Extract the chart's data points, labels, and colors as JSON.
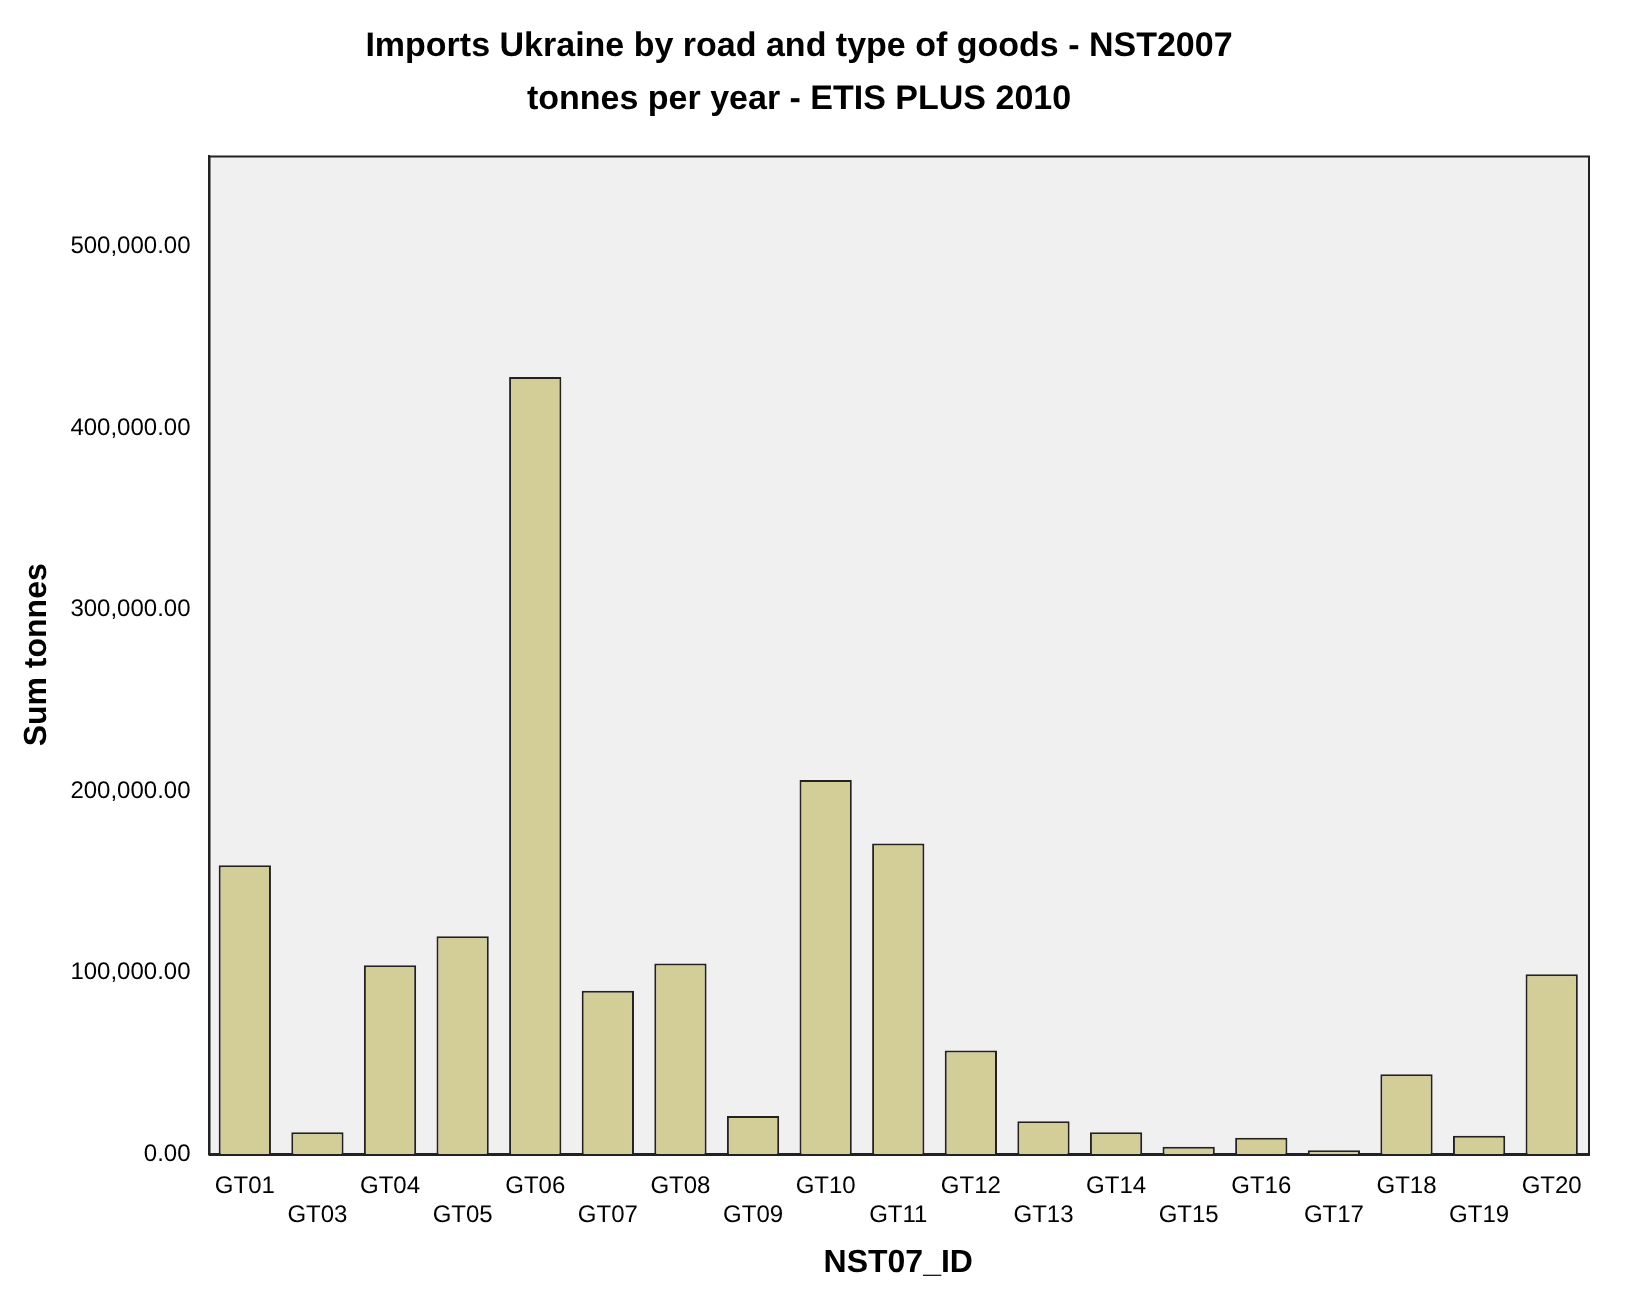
{
  "chart_data": {
    "type": "bar",
    "title": "Imports Ukraine by road and type of goods - NST2007",
    "subtitle": "tonnes per year - ETIS PLUS 2010",
    "xlabel": "NST07_ID",
    "ylabel": "Sum tonnes",
    "categories": [
      "GT01",
      "GT03",
      "GT04",
      "GT05",
      "GT06",
      "GT07",
      "GT08",
      "GT09",
      "GT10",
      "GT11",
      "GT12",
      "GT13",
      "GT14",
      "GT15",
      "GT16",
      "GT17",
      "GT18",
      "GT19",
      "GT20"
    ],
    "values": [
      159000,
      12000,
      104000,
      120000,
      428000,
      90000,
      105000,
      21000,
      206000,
      171000,
      57000,
      18000,
      12000,
      4000,
      9000,
      2000,
      44000,
      10000,
      99000
    ],
    "color": "#d3ce97",
    "ylim": [
      0,
      550000
    ],
    "yticks": [
      {
        "value": 0,
        "label": "0.00"
      },
      {
        "value": 100000,
        "label": "100,000.00"
      },
      {
        "value": 200000,
        "label": "200,000.00"
      },
      {
        "value": 300000,
        "label": "300,000.00"
      },
      {
        "value": 400000,
        "label": "400,000.00"
      },
      {
        "value": 500000,
        "label": "500,000.00"
      }
    ],
    "grid": false,
    "legend": false
  }
}
